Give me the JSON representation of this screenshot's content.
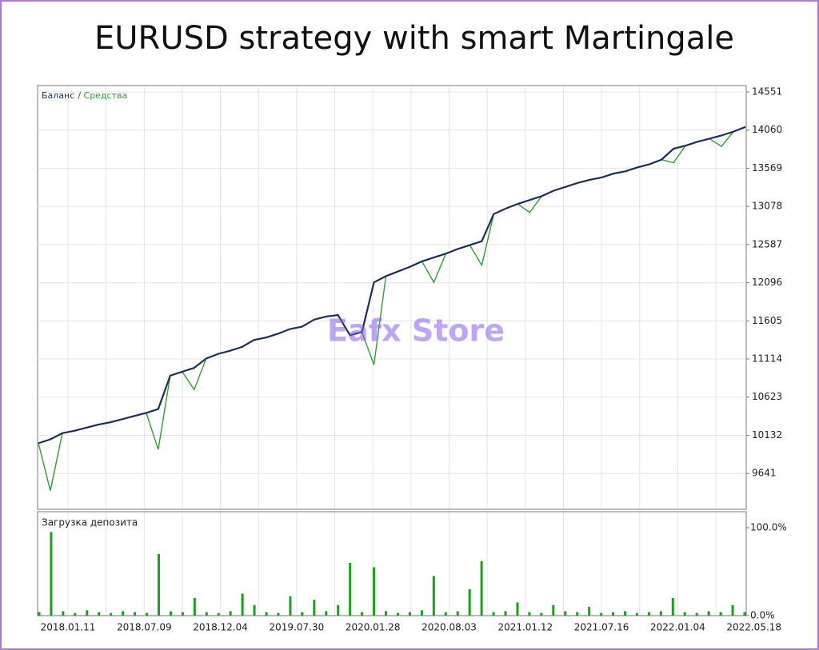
{
  "chart_data": [
    {
      "type": "line",
      "title": "EURUSD strategy  with smart Martingale",
      "watermark": "Eafx Store",
      "legend_separator": "/",
      "ylim": [
        9180,
        14633
      ],
      "yticks": [
        9641,
        10132,
        10623,
        11114,
        11605,
        12096,
        12587,
        13078,
        13569,
        14060,
        14551
      ],
      "grid": true,
      "series": [
        {
          "name": "Баланс",
          "color": "#1c2f5a",
          "values": [
            10030,
            10080,
            10160,
            10190,
            10230,
            10270,
            10300,
            10340,
            10380,
            10420,
            10470,
            10900,
            10950,
            11000,
            11120,
            11180,
            11220,
            11270,
            11360,
            11390,
            11440,
            11500,
            11530,
            11620,
            11660,
            11680,
            11420,
            11460,
            12100,
            12180,
            12240,
            12300,
            12370,
            12420,
            12470,
            12530,
            12580,
            12630,
            12980,
            13050,
            13110,
            13160,
            13210,
            13280,
            13330,
            13380,
            13420,
            13450,
            13500,
            13530,
            13580,
            13620,
            13680,
            13820,
            13860,
            13910,
            13950,
            13990,
            14040,
            14100
          ]
        },
        {
          "name": "Средства",
          "color": "#2ea02e",
          "values": [
            10030,
            9420,
            10160,
            10190,
            10230,
            10270,
            10300,
            10340,
            10380,
            10420,
            9950,
            10900,
            10950,
            10720,
            11120,
            11180,
            11220,
            11270,
            11360,
            11390,
            11440,
            11500,
            11530,
            11620,
            11660,
            11680,
            11420,
            11460,
            11040,
            12180,
            12240,
            12300,
            12370,
            12100,
            12470,
            12530,
            12580,
            12320,
            12980,
            13050,
            13110,
            13000,
            13210,
            13280,
            13330,
            13380,
            13420,
            13450,
            13500,
            13530,
            13580,
            13620,
            13680,
            13640,
            13860,
            13910,
            13950,
            13850,
            14040,
            14100
          ]
        }
      ]
    },
    {
      "type": "bar",
      "title": "Загрузка депозита",
      "color": "#17a317",
      "ylim": [
        0,
        100
      ],
      "yticks": [
        {
          "value": 0,
          "label": "0.0%"
        },
        {
          "value": 100,
          "label": "100.0%"
        }
      ],
      "xtick_labels": [
        "2018.01.11",
        "2018.07.09",
        "2018.12.04",
        "2019.07.30",
        "2020.01.28",
        "2020.08.03",
        "2021.01.12",
        "2021.07.16",
        "2022.01.04",
        "2022.05.18"
      ],
      "values": [
        4,
        95,
        5,
        3,
        6,
        4,
        3,
        5,
        4,
        3,
        70,
        5,
        4,
        20,
        4,
        3,
        5,
        25,
        12,
        4,
        3,
        22,
        4,
        18,
        5,
        12,
        60,
        4,
        55,
        5,
        3,
        4,
        6,
        45,
        4,
        5,
        30,
        62,
        4,
        5,
        15,
        4,
        3,
        12,
        5,
        4,
        10,
        3,
        4,
        5,
        3,
        4,
        5,
        20,
        4,
        3,
        5,
        4,
        12,
        4
      ]
    }
  ]
}
